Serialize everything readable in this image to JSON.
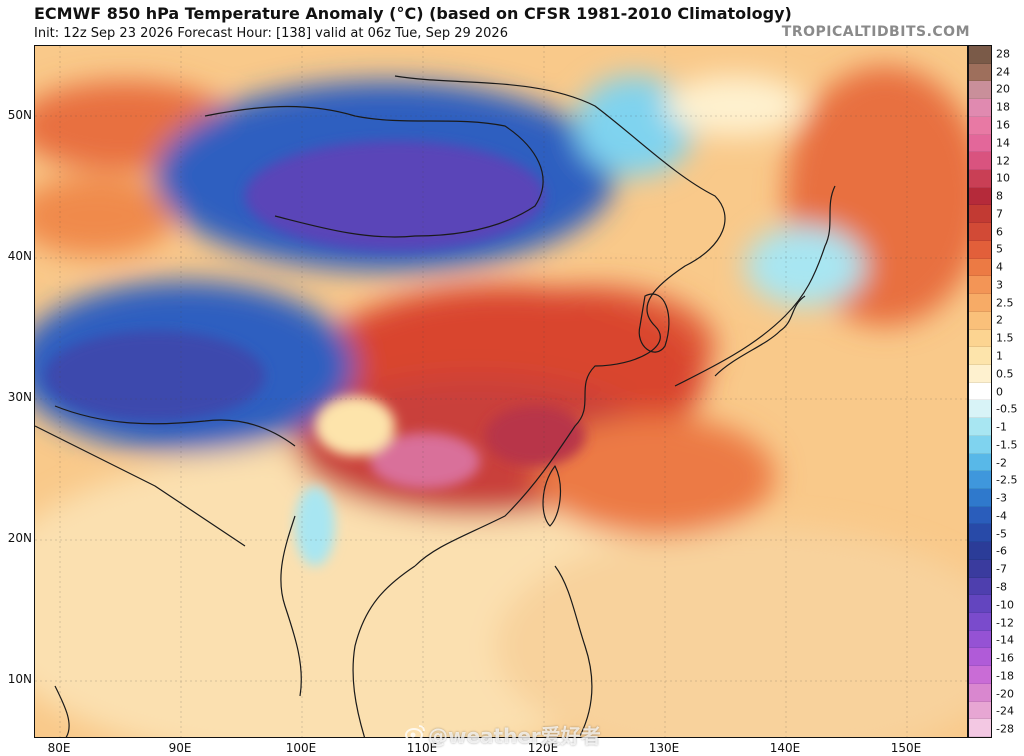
{
  "header": {
    "title": "ECMWF 850 hPa Temperature Anomaly (°C) (based on CFSR 1981-2010 Climatology)",
    "subtitle": "Init: 12z Sep 23 2026   Forecast Hour: [138]   valid at 06z Tue, Sep 29 2026",
    "brand": "TROPICALTIDBITS.COM"
  },
  "map": {
    "lat_labels": [
      "50N",
      "40N",
      "30N",
      "20N",
      "10N"
    ],
    "lon_labels": [
      "80E",
      "90E",
      "100E",
      "110E",
      "120E",
      "130E",
      "140E",
      "150E"
    ]
  },
  "colorbar": {
    "labels": [
      "28",
      "24",
      "20",
      "18",
      "16",
      "14",
      "12",
      "10",
      "8",
      "7",
      "6",
      "5",
      "4",
      "3",
      "2.5",
      "2",
      "1.5",
      "1",
      "0.5",
      "0",
      "-0.5",
      "-1",
      "-1.5",
      "-2",
      "-2.5",
      "-3",
      "-4",
      "-5",
      "-6",
      "-7",
      "-8",
      "-10",
      "-12",
      "-14",
      "-16",
      "-18",
      "-20",
      "-24",
      "-28"
    ],
    "colors": [
      "#7a5a48",
      "#9e6f5c",
      "#c98f9a",
      "#e08ab0",
      "#e879a4",
      "#e3679a",
      "#d9537f",
      "#c93f55",
      "#b52a3a",
      "#c23a33",
      "#d24a36",
      "#e25f3a",
      "#ec7a44",
      "#f39556",
      "#f7ab66",
      "#fac07a",
      "#fcd491",
      "#fde4ab",
      "#fef1cf",
      "#ffffff",
      "#d8f3f7",
      "#a8e6f2",
      "#7fd3ef",
      "#58b8e8",
      "#3f97dc",
      "#2f79cc",
      "#2a5dbb",
      "#284aa8",
      "#2b3c98",
      "#3a3b9e",
      "#4e3fae",
      "#6345bf",
      "#7a4bcc",
      "#9552d4",
      "#b05bd8",
      "#c96cd6",
      "#d987cf",
      "#e7a6d3",
      "#f3c8e3"
    ]
  },
  "watermark": "@weather爱好者"
}
